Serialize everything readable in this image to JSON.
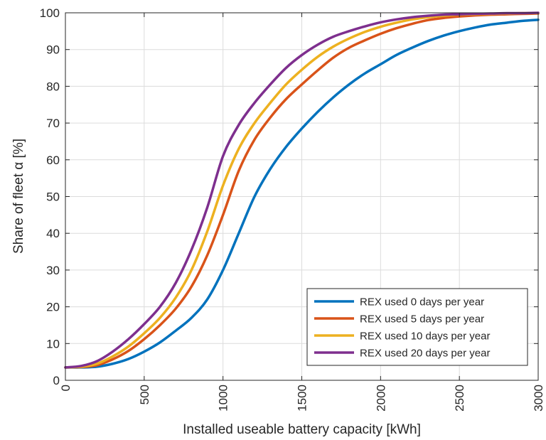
{
  "chart_data": {
    "type": "line",
    "title": "",
    "xlabel": "Installed useable battery capacity [kWh]",
    "ylabel": "Share of fleet α [%]",
    "xlim": [
      0,
      3000
    ],
    "ylim": [
      0,
      100
    ],
    "xticks": [
      0,
      500,
      1000,
      1500,
      2000,
      2500,
      3000
    ],
    "yticks": [
      0,
      10,
      20,
      30,
      40,
      50,
      60,
      70,
      80,
      90,
      100
    ],
    "xtick_labels": [
      "0",
      "500",
      "1000",
      "1500",
      "2000",
      "2500",
      "3000"
    ],
    "ytick_labels": [
      "0",
      "10",
      "20",
      "30",
      "40",
      "50",
      "60",
      "70",
      "80",
      "90",
      "100"
    ],
    "grid": true,
    "legend_position": "bottom-right",
    "x": [
      0,
      100,
      200,
      300,
      400,
      500,
      600,
      700,
      800,
      900,
      1000,
      1100,
      1200,
      1300,
      1400,
      1500,
      1600,
      1700,
      1800,
      1900,
      2000,
      2100,
      2200,
      2300,
      2400,
      2500,
      2600,
      2700,
      2800,
      2900,
      3000
    ],
    "series": [
      {
        "name": "REX used 0 days per year",
        "color": "#0072BD",
        "values": [
          3.5,
          3.5,
          3.7,
          4.5,
          5.8,
          7.8,
          10.3,
          13.5,
          17.0,
          22.0,
          30.0,
          40.0,
          50.0,
          57.5,
          63.5,
          68.5,
          73.0,
          77.0,
          80.5,
          83.5,
          86.0,
          88.5,
          90.5,
          92.3,
          93.8,
          95.0,
          96.0,
          96.8,
          97.3,
          97.8,
          98.1
        ]
      },
      {
        "name": "REX used 5 days per year",
        "color": "#D95319",
        "values": [
          3.5,
          3.6,
          4.1,
          5.7,
          8.0,
          11.2,
          15.0,
          19.5,
          25.5,
          34.0,
          45.0,
          57.0,
          65.5,
          71.5,
          76.5,
          80.5,
          84.3,
          87.8,
          90.5,
          92.5,
          94.3,
          95.8,
          97.0,
          98.0,
          98.6,
          99.0,
          99.3,
          99.5,
          99.6,
          99.7,
          99.8
        ]
      },
      {
        "name": "REX used 10 days per year",
        "color": "#EDB120",
        "values": [
          3.5,
          3.7,
          4.5,
          6.5,
          9.2,
          12.8,
          17.0,
          22.5,
          30.0,
          40.5,
          53.0,
          63.0,
          70.0,
          75.5,
          80.5,
          84.5,
          88.0,
          90.8,
          93.0,
          94.8,
          96.2,
          97.3,
          98.2,
          98.8,
          99.2,
          99.5,
          99.6,
          99.7,
          99.8,
          99.9,
          99.9
        ]
      },
      {
        "name": "REX used 20 days per year",
        "color": "#7E2F8E",
        "values": [
          3.5,
          3.9,
          5.2,
          7.8,
          11.2,
          15.3,
          20.0,
          26.5,
          35.5,
          47.0,
          61.0,
          69.5,
          75.5,
          80.5,
          85.0,
          88.5,
          91.3,
          93.5,
          95.0,
          96.3,
          97.4,
          98.2,
          98.8,
          99.2,
          99.5,
          99.6,
          99.7,
          99.8,
          99.9,
          99.9,
          100.0
        ]
      }
    ]
  }
}
